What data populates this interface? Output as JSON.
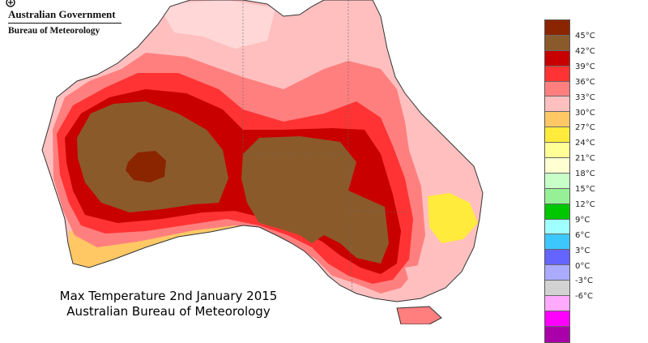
{
  "branding": {
    "government": "Australian Government",
    "agency": "Bureau of Meteorology"
  },
  "map": {
    "title_line1": "Max Temperature 2nd January 2015",
    "title_line2": "Australian Bureau of Meteorology",
    "region": "Australia",
    "units": "°C"
  },
  "legend": {
    "swatch_colors": [
      "#8b2500",
      "#8b5a2b",
      "#c80000",
      "#ff3333",
      "#ff7f7f",
      "#ffbfbf",
      "#ffc864",
      "#ffeb3c",
      "#ffff96",
      "#ffffd2",
      "#c8ffc8",
      "#96f096",
      "#00c800",
      "#a0ffff",
      "#3cc8ff",
      "#6464ff",
      "#aaaaff",
      "#d2d2d2",
      "#ffaaff",
      "#ff00ff",
      "#aa00aa"
    ],
    "tick_labels": [
      "45°C",
      "42°C",
      "39°C",
      "36°C",
      "33°C",
      "30°C",
      "27°C",
      "24°C",
      "21°C",
      "18°C",
      "15°C",
      "12°C",
      "9°C",
      "6°C",
      "3°C",
      "0°C",
      "-3°C",
      "-6°C"
    ]
  }
}
